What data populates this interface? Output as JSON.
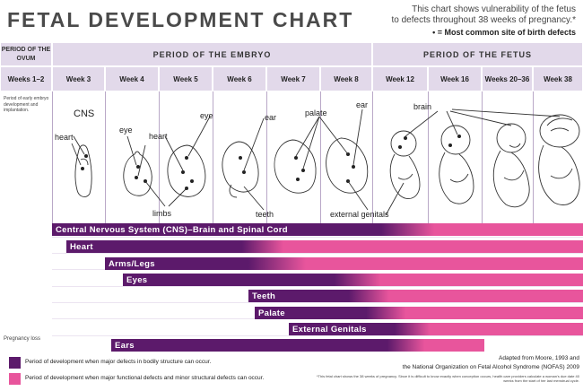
{
  "title": "FETAL DEVELOPMENT CHART",
  "note_lines": [
    "This chart shows vulnerability of the fetus",
    "to defects throughout 38 weeks of pregnancy.*"
  ],
  "note_dot": "• = Most common site of birth defects",
  "period_ovum": "PERIOD OF THE OVUM",
  "period_embryo": "PERIOD OF THE EMBRYO",
  "period_fetus": "PERIOD OF THE FETUS",
  "weeks": [
    "Weeks 1–2",
    "Week 3",
    "Week 4",
    "Week 5",
    "Week 6",
    "Week 7",
    "Week 8",
    "Week 12",
    "Week 16",
    "Weeks 20–36",
    "Week 38"
  ],
  "embryo_note": "Period of early embryo development and implantation.",
  "organ_labels": {
    "cns": "CNS",
    "heart_w3": "heart",
    "eye_w4": "eye",
    "heart_w5": "heart",
    "eye_w5": "eye",
    "ear_w6": "ear",
    "palate": "palate",
    "ear_w8": "ear",
    "brain": "brain",
    "limbs": "limbs",
    "teeth": "teeth",
    "external_genitals": "external genitals"
  },
  "bars": [
    {
      "label": "Central Nervous System (CNS)–Brain and Spinal Cord"
    },
    {
      "label": "Heart"
    },
    {
      "label": "Arms/Legs"
    },
    {
      "label": "Eyes"
    },
    {
      "label": "Teeth"
    },
    {
      "label": "Palate"
    },
    {
      "label": "External Genitals"
    },
    {
      "label": "Ears"
    }
  ],
  "pregnancy_loss": "Pregnancy loss",
  "legend": [
    {
      "label": "Period of development when major defects in bodily structure can occur.",
      "color": "#5c1a6b"
    },
    {
      "label": "Period of development when major functional defects and minor structural defects can occur.",
      "color": "#e8559c"
    }
  ],
  "credit": [
    "Adapted from Moore, 1993 and",
    "the National Organization on Fetal Alcohol Syndrome (NOFAS) 2009"
  ],
  "footnote": "*This fetal chart shows the 38 weeks of pregnancy. Since it is difficult to know exactly when conception occurs, health care providers calculate a woman's due date 40 weeks from the start of her last menstrual cycle.",
  "colors": {
    "major": "#5c1a6b",
    "minor": "#e8559c",
    "header": "#e2d9ea"
  }
}
